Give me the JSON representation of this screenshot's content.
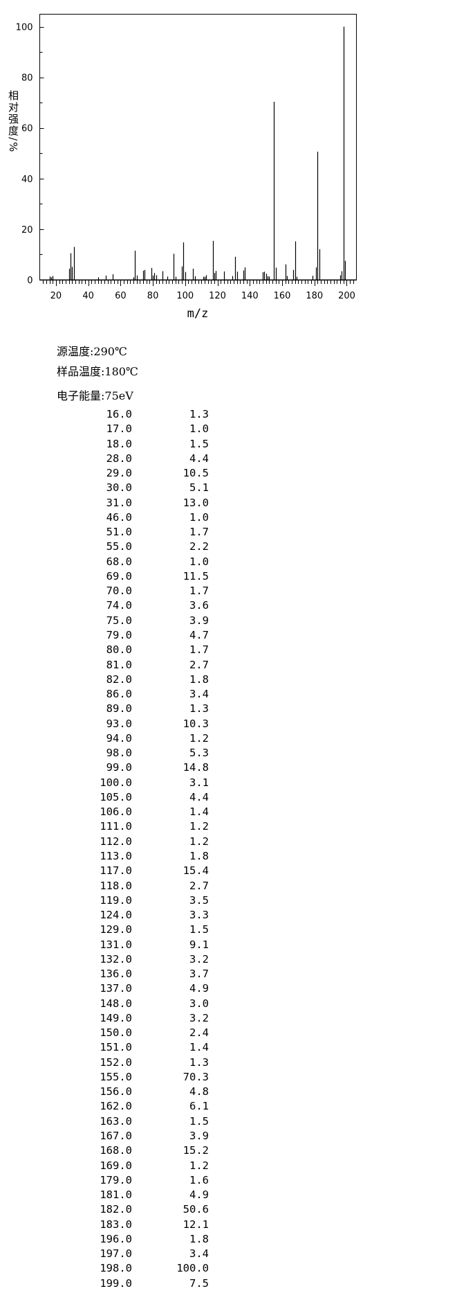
{
  "chart_data": {
    "type": "bar",
    "xlabel": "m/z",
    "ylabel": "相对强度/%",
    "xlim": [
      10,
      206
    ],
    "ylim": [
      0,
      100
    ],
    "xticks": [
      20,
      40,
      60,
      80,
      100,
      120,
      140,
      160,
      180,
      200
    ],
    "yticks": [
      0,
      20,
      40,
      60,
      80,
      100
    ],
    "grid": false,
    "color": "#000000",
    "x": [
      16,
      17,
      18,
      28,
      29,
      30,
      31,
      46,
      51,
      55,
      68,
      69,
      70,
      74,
      75,
      79,
      80,
      81,
      82,
      86,
      89,
      93,
      94,
      98,
      99,
      100,
      105,
      106,
      111,
      112,
      113,
      117,
      118,
      119,
      124,
      129,
      131,
      132,
      136,
      137,
      148,
      149,
      150,
      151,
      152,
      155,
      156,
      162,
      163,
      167,
      168,
      169,
      179,
      181,
      182,
      183,
      196,
      197,
      198,
      199
    ],
    "values": [
      1.3,
      1.0,
      1.5,
      4.4,
      10.5,
      5.1,
      13.0,
      1.0,
      1.7,
      2.2,
      1.0,
      11.5,
      1.7,
      3.6,
      3.9,
      4.7,
      1.7,
      2.7,
      1.8,
      3.4,
      1.3,
      10.3,
      1.2,
      5.3,
      14.8,
      3.1,
      4.4,
      1.4,
      1.2,
      1.2,
      1.8,
      15.4,
      2.7,
      3.5,
      3.3,
      1.5,
      9.1,
      3.2,
      3.7,
      4.9,
      3.0,
      3.2,
      2.4,
      1.4,
      1.3,
      70.3,
      4.8,
      6.1,
      1.5,
      3.9,
      15.2,
      1.2,
      1.6,
      4.9,
      50.6,
      12.1,
      1.8,
      3.4,
      100.0,
      7.5
    ]
  },
  "conditions": {
    "source_temp": "源温度:290℃",
    "sample_temp": "样品温度:180℃",
    "electron_energy": "电子能量:75eV"
  },
  "table": {
    "rows": [
      [
        "16.0",
        "1.3"
      ],
      [
        "17.0",
        "1.0"
      ],
      [
        "18.0",
        "1.5"
      ],
      [
        "28.0",
        "4.4"
      ],
      [
        "29.0",
        "10.5"
      ],
      [
        "30.0",
        "5.1"
      ],
      [
        "31.0",
        "13.0"
      ],
      [
        "46.0",
        "1.0"
      ],
      [
        "51.0",
        "1.7"
      ],
      [
        "55.0",
        "2.2"
      ],
      [
        "68.0",
        "1.0"
      ],
      [
        "69.0",
        "11.5"
      ],
      [
        "70.0",
        "1.7"
      ],
      [
        "74.0",
        "3.6"
      ],
      [
        "75.0",
        "3.9"
      ],
      [
        "79.0",
        "4.7"
      ],
      [
        "80.0",
        "1.7"
      ],
      [
        "81.0",
        "2.7"
      ],
      [
        "82.0",
        "1.8"
      ],
      [
        "86.0",
        "3.4"
      ],
      [
        "89.0",
        "1.3"
      ],
      [
        "93.0",
        "10.3"
      ],
      [
        "94.0",
        "1.2"
      ],
      [
        "98.0",
        "5.3"
      ],
      [
        "99.0",
        "14.8"
      ],
      [
        "100.0",
        "3.1"
      ],
      [
        "105.0",
        "4.4"
      ],
      [
        "106.0",
        "1.4"
      ],
      [
        "111.0",
        "1.2"
      ],
      [
        "112.0",
        "1.2"
      ],
      [
        "113.0",
        "1.8"
      ],
      [
        "117.0",
        "15.4"
      ],
      [
        "118.0",
        "2.7"
      ],
      [
        "119.0",
        "3.5"
      ],
      [
        "124.0",
        "3.3"
      ],
      [
        "129.0",
        "1.5"
      ],
      [
        "131.0",
        "9.1"
      ],
      [
        "132.0",
        "3.2"
      ],
      [
        "136.0",
        "3.7"
      ],
      [
        "137.0",
        "4.9"
      ],
      [
        "148.0",
        "3.0"
      ],
      [
        "149.0",
        "3.2"
      ],
      [
        "150.0",
        "2.4"
      ],
      [
        "151.0",
        "1.4"
      ],
      [
        "152.0",
        "1.3"
      ],
      [
        "155.0",
        "70.3"
      ],
      [
        "156.0",
        "4.8"
      ],
      [
        "162.0",
        "6.1"
      ],
      [
        "163.0",
        "1.5"
      ],
      [
        "167.0",
        "3.9"
      ],
      [
        "168.0",
        "15.2"
      ],
      [
        "169.0",
        "1.2"
      ],
      [
        "179.0",
        "1.6"
      ],
      [
        "181.0",
        "4.9"
      ],
      [
        "182.0",
        "50.6"
      ],
      [
        "183.0",
        "12.1"
      ],
      [
        "196.0",
        "1.8"
      ],
      [
        "197.0",
        "3.4"
      ],
      [
        "198.0",
        "100.0"
      ],
      [
        "199.0",
        "7.5"
      ]
    ]
  }
}
